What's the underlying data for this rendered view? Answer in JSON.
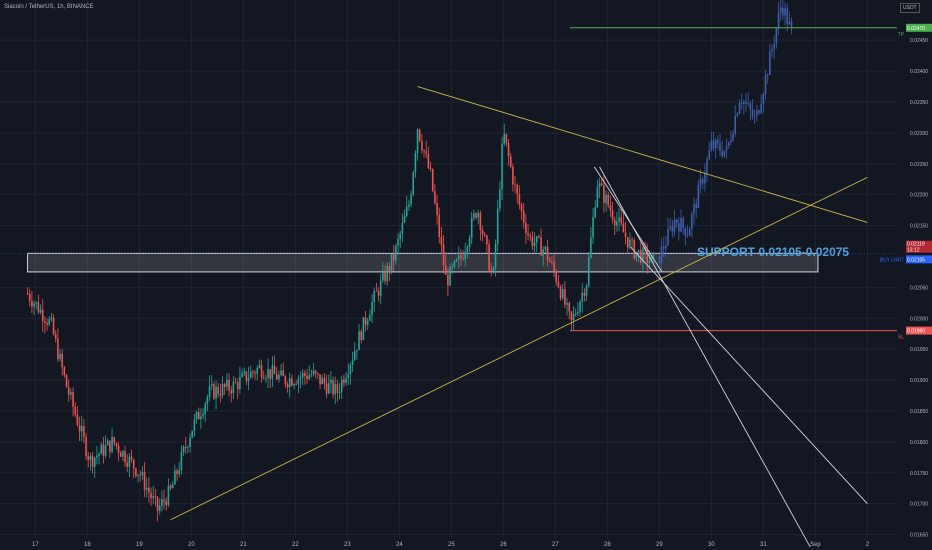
{
  "header": {
    "symbol_title": "Siacoin / TetherUS, 1h, BINANCE",
    "currency": "USDT"
  },
  "chart_data": {
    "type": "candlestick",
    "title": "Siacoin / TetherUS, 1h, BINANCE",
    "x_ticks": [
      "17",
      "18",
      "19",
      "20",
      "21",
      "22",
      "23",
      "24",
      "25",
      "26",
      "27",
      "28",
      "29",
      "30",
      "31",
      "Sep",
      "2"
    ],
    "y_ticks": [
      "0.02450",
      "0.02400",
      "0.02350",
      "0.02300",
      "0.02250",
      "0.02200",
      "0.02150",
      "0.02050",
      "0.02000",
      "0.01950",
      "0.01900",
      "0.01850",
      "0.01800",
      "0.01750",
      "0.01700",
      "0.01650"
    ],
    "ylim": [
      0.01625,
      0.02515
    ],
    "price_labels": {
      "tp": {
        "value": "0.02470",
        "tag": "TP",
        "color": "#4caf50"
      },
      "last": {
        "value": "0.02119",
        "sub": "13:12",
        "color": "#b22833"
      },
      "buy_limit": {
        "value": "0.02105",
        "tag": "BUY LIMIT",
        "color": "#2962ff"
      },
      "sl": {
        "value": "0.01980",
        "tag": "SL",
        "color": "#ef5350"
      }
    },
    "annotation": "SUPPORT 0.02105-0.02075",
    "support_zone": [
      0.02075,
      0.02105
    ],
    "colors": {
      "up": "#26a69a",
      "down": "#ef5350",
      "projection": "#3f5fa8",
      "trend": "#c8b44a",
      "fan": "#d1d4dc"
    },
    "anchors": [
      {
        "d": 16.85,
        "p": 0.0204
      },
      {
        "d": 17.3,
        "p": 0.0199
      },
      {
        "d": 17.6,
        "p": 0.0189
      },
      {
        "d": 18.05,
        "p": 0.0177
      },
      {
        "d": 18.5,
        "p": 0.018
      },
      {
        "d": 19.0,
        "p": 0.0175
      },
      {
        "d": 19.35,
        "p": 0.0169
      },
      {
        "d": 19.6,
        "p": 0.0172
      },
      {
        "d": 20.0,
        "p": 0.0182
      },
      {
        "d": 20.35,
        "p": 0.0188
      },
      {
        "d": 20.8,
        "p": 0.0189
      },
      {
        "d": 21.3,
        "p": 0.0192
      },
      {
        "d": 21.8,
        "p": 0.019
      },
      {
        "d": 22.3,
        "p": 0.0191
      },
      {
        "d": 22.8,
        "p": 0.0188
      },
      {
        "d": 23.1,
        "p": 0.0194
      },
      {
        "d": 23.45,
        "p": 0.0202
      },
      {
        "d": 23.9,
        "p": 0.021
      },
      {
        "d": 24.2,
        "p": 0.0219
      },
      {
        "d": 24.35,
        "p": 0.0231
      },
      {
        "d": 24.6,
        "p": 0.0223
      },
      {
        "d": 24.9,
        "p": 0.0206
      },
      {
        "d": 25.2,
        "p": 0.021
      },
      {
        "d": 25.5,
        "p": 0.0218
      },
      {
        "d": 25.8,
        "p": 0.0206
      },
      {
        "d": 26.0,
        "p": 0.023
      },
      {
        "d": 26.25,
        "p": 0.022
      },
      {
        "d": 26.5,
        "p": 0.0213
      },
      {
        "d": 26.8,
        "p": 0.0211
      },
      {
        "d": 27.05,
        "p": 0.0206
      },
      {
        "d": 27.3,
        "p": 0.0199
      },
      {
        "d": 27.6,
        "p": 0.0206
      },
      {
        "d": 27.8,
        "p": 0.0222
      },
      {
        "d": 28.1,
        "p": 0.0217
      },
      {
        "d": 28.5,
        "p": 0.0211
      },
      {
        "d": 28.9,
        "p": 0.0209
      }
    ],
    "projection_anchors": [
      {
        "d": 29.0,
        "p": 0.021
      },
      {
        "d": 29.3,
        "p": 0.0216
      },
      {
        "d": 29.55,
        "p": 0.0214
      },
      {
        "d": 30.0,
        "p": 0.0228
      },
      {
        "d": 30.3,
        "p": 0.0227
      },
      {
        "d": 30.55,
        "p": 0.0236
      },
      {
        "d": 30.85,
        "p": 0.0232
      },
      {
        "d": 31.1,
        "p": 0.0241
      },
      {
        "d": 31.35,
        "p": 0.0251
      },
      {
        "d": 31.55,
        "p": 0.0246
      }
    ],
    "trendlines": [
      {
        "from": {
          "d": 24.35,
          "p": 0.02375
        },
        "to": {
          "d": 33.0,
          "p": 0.02155
        },
        "style": "trend"
      },
      {
        "from": {
          "d": 19.6,
          "p": 0.01674
        },
        "to": {
          "d": 33.0,
          "p": 0.02228
        },
        "style": "trend"
      },
      {
        "from": {
          "d": 27.85,
          "p": 0.02245
        },
        "to": {
          "d": 31.9,
          "p": 0.0163
        },
        "style": "fan"
      },
      {
        "from": {
          "d": 28.45,
          "p": 0.02115
        },
        "to": {
          "d": 33.0,
          "p": 0.017
        },
        "style": "fan"
      },
      {
        "from": {
          "d": 27.75,
          "p": 0.02245
        },
        "to": {
          "d": 29.05,
          "p": 0.02075
        },
        "style": "fan"
      }
    ]
  }
}
